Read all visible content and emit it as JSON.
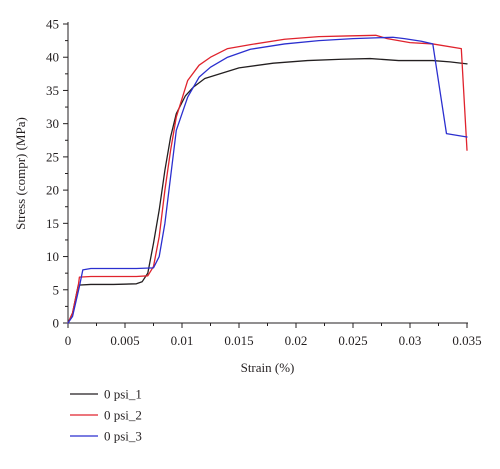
{
  "chart_data": {
    "type": "line",
    "title": "",
    "xlabel": "Strain (%)",
    "ylabel": "Stress (compr) (MPa)",
    "xlim": [
      0,
      0.035
    ],
    "ylim": [
      0,
      45
    ],
    "xticks": [
      0,
      0.005,
      0.01,
      0.015,
      0.02,
      0.025,
      0.03,
      0.035
    ],
    "xtick_labels": [
      "0",
      "0.005",
      "0.01",
      "0.015",
      "0.02",
      "0.025",
      "0.03",
      "0.035"
    ],
    "yticks": [
      0,
      5,
      10,
      15,
      20,
      25,
      30,
      35,
      40,
      45
    ],
    "ytick_labels": [
      "0",
      "5",
      "10",
      "15",
      "20",
      "25",
      "30",
      "35",
      "40",
      "45"
    ],
    "grid": false,
    "legend_position": "bottom-left",
    "series": [
      {
        "name": "0 psi_1",
        "color": "#231f20",
        "points": [
          [
            0,
            0
          ],
          [
            0.0004,
            1.5
          ],
          [
            0.0009,
            5.7
          ],
          [
            0.002,
            5.8
          ],
          [
            0.004,
            5.8
          ],
          [
            0.006,
            5.9
          ],
          [
            0.0065,
            6.2
          ],
          [
            0.007,
            7.5
          ],
          [
            0.0075,
            12
          ],
          [
            0.008,
            17
          ],
          [
            0.0085,
            23
          ],
          [
            0.009,
            28
          ],
          [
            0.0095,
            31.5
          ],
          [
            0.0103,
            34.2
          ],
          [
            0.011,
            35.5
          ],
          [
            0.012,
            36.8
          ],
          [
            0.015,
            38.4
          ],
          [
            0.018,
            39.1
          ],
          [
            0.021,
            39.5
          ],
          [
            0.024,
            39.7
          ],
          [
            0.0265,
            39.8
          ],
          [
            0.029,
            39.5
          ],
          [
            0.032,
            39.5
          ],
          [
            0.0335,
            39.3
          ],
          [
            0.035,
            39.0
          ]
        ]
      },
      {
        "name": "0 psi_2",
        "color": "#e0232d",
        "points": [
          [
            0,
            0
          ],
          [
            0.0004,
            1.5
          ],
          [
            0.0009,
            5.6
          ],
          [
            0.001,
            6.9
          ],
          [
            0.002,
            7.0
          ],
          [
            0.004,
            7.0
          ],
          [
            0.006,
            7.0
          ],
          [
            0.007,
            7.1
          ],
          [
            0.0075,
            8.5
          ],
          [
            0.008,
            13
          ],
          [
            0.0085,
            20
          ],
          [
            0.009,
            26
          ],
          [
            0.0095,
            31
          ],
          [
            0.0105,
            36.5
          ],
          [
            0.0115,
            38.8
          ],
          [
            0.0125,
            40
          ],
          [
            0.014,
            41.3
          ],
          [
            0.016,
            41.9
          ],
          [
            0.019,
            42.7
          ],
          [
            0.022,
            43.1
          ],
          [
            0.0245,
            43.2
          ],
          [
            0.027,
            43.3
          ],
          [
            0.028,
            42.8
          ],
          [
            0.03,
            42.2
          ],
          [
            0.032,
            42.0
          ],
          [
            0.0345,
            41.3
          ],
          [
            0.035,
            26.0
          ]
        ]
      },
      {
        "name": "0 psi_3",
        "color": "#2b2fcf",
        "points": [
          [
            0,
            0
          ],
          [
            0.0004,
            1.0
          ],
          [
            0.001,
            5.5
          ],
          [
            0.0013,
            8.0
          ],
          [
            0.002,
            8.2
          ],
          [
            0.004,
            8.2
          ],
          [
            0.006,
            8.2
          ],
          [
            0.0075,
            8.3
          ],
          [
            0.008,
            10
          ],
          [
            0.0085,
            15
          ],
          [
            0.009,
            22
          ],
          [
            0.0095,
            29
          ],
          [
            0.0105,
            34
          ],
          [
            0.0115,
            37
          ],
          [
            0.0125,
            38.5
          ],
          [
            0.014,
            40
          ],
          [
            0.016,
            41.2
          ],
          [
            0.019,
            42
          ],
          [
            0.022,
            42.5
          ],
          [
            0.025,
            42.8
          ],
          [
            0.0285,
            43.0
          ],
          [
            0.0295,
            42.8
          ],
          [
            0.031,
            42.4
          ],
          [
            0.032,
            42.0
          ],
          [
            0.0332,
            28.5
          ],
          [
            0.035,
            28.0
          ]
        ]
      }
    ]
  }
}
